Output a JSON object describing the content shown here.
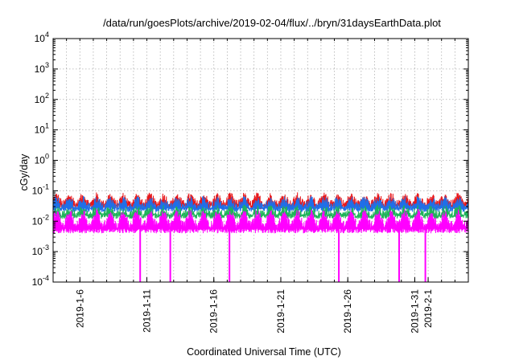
{
  "chart_data": {
    "type": "line",
    "title": "/data/run/goesPlots/archive/2019-02-04/flux/../bryn/31daysEarthData.plot",
    "xlabel": "Coordinated Universal Time (UTC)",
    "ylabel": "cGy/day",
    "yscale": "log",
    "ylim": [
      0.0001,
      10000
    ],
    "xlim": [
      "2019-01-04",
      "2019-02-04"
    ],
    "grid": true,
    "y_ticks": [
      {
        "value": 0.0001,
        "mant": "10",
        "exp": "-4"
      },
      {
        "value": 0.001,
        "mant": "10",
        "exp": "-3"
      },
      {
        "value": 0.01,
        "mant": "10",
        "exp": "-2"
      },
      {
        "value": 0.1,
        "mant": "10",
        "exp": "-1"
      },
      {
        "value": 1,
        "mant": "10",
        "exp": "0"
      },
      {
        "value": 10,
        "mant": "10",
        "exp": "1"
      },
      {
        "value": 100,
        "mant": "10",
        "exp": "2"
      },
      {
        "value": 1000,
        "mant": "10",
        "exp": "3"
      },
      {
        "value": 10000,
        "mant": "10",
        "exp": "4"
      }
    ],
    "x_ticks": [
      {
        "date": "2019-01-06",
        "label": "2019-1-6"
      },
      {
        "date": "2019-01-11",
        "label": "2019-1-11"
      },
      {
        "date": "2019-01-16",
        "label": "2019-1-16"
      },
      {
        "date": "2019-01-21",
        "label": "2019-1-21"
      },
      {
        "date": "2019-01-26",
        "label": "2019-1-26"
      },
      {
        "date": "2019-01-31",
        "label": "2019-1-31"
      },
      {
        "date": "2019-02-01",
        "label": "2019-2-1"
      }
    ],
    "series": [
      {
        "color": "#e8171a",
        "typical_peak": 0.08,
        "typical_base": 0.025
      },
      {
        "color": "#1f6fe8",
        "typical_peak": 0.06,
        "typical_base": 0.02
      },
      {
        "color": "#1fb35a",
        "typical_peak": 0.03,
        "typical_base": 0.012
      },
      {
        "color": "#ff00ff",
        "typical_peak": 0.025,
        "typical_base": 0.004
      }
    ],
    "dropouts": [
      "2019-01-10T12:00",
      "2019-01-12T18:00",
      "2019-01-17T04:00",
      "2019-01-25T08:00",
      "2019-01-29T20:00",
      "2019-01-31T19:00"
    ],
    "dropout_min": 0.0001
  }
}
